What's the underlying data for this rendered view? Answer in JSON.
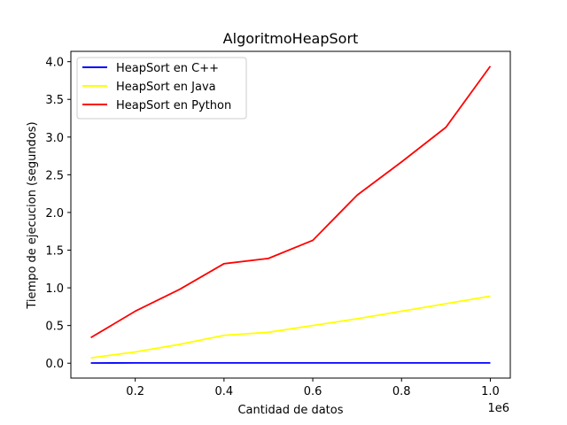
{
  "chart_data": {
    "type": "line",
    "title": "AlgoritmoHeapSort",
    "xlabel": "Cantidad de datos",
    "ylabel": "Tiempo de ejecucion (segundos)",
    "x_offset_text": "1e6",
    "xlim": [
      55000,
      1045000
    ],
    "ylim": [
      -0.197,
      4.137
    ],
    "x_ticks": [
      0.2,
      0.4,
      0.6,
      0.8,
      1.0
    ],
    "y_ticks": [
      0.0,
      0.5,
      1.0,
      1.5,
      2.0,
      2.5,
      3.0,
      3.5,
      4.0
    ],
    "x_tick_labels": [
      "0.2",
      "0.4",
      "0.6",
      "0.8",
      "1.0"
    ],
    "y_tick_labels": [
      "0.0",
      "0.5",
      "1.0",
      "1.5",
      "2.0",
      "2.5",
      "3.0",
      "3.5",
      "4.0"
    ],
    "legend_position": "top-left",
    "grid": false,
    "x": [
      100000,
      200000,
      300000,
      400000,
      500000,
      600000,
      700000,
      800000,
      900000,
      1000000
    ],
    "series": [
      {
        "name": "HeapSort en C++",
        "color": "#0000ff",
        "values": [
          0.003,
          0.004,
          0.004,
          0.004,
          0.004,
          0.004,
          0.004,
          0.004,
          0.004,
          0.004
        ]
      },
      {
        "name": "HeapSort en Java",
        "color": "#ffff00",
        "values": [
          0.07,
          0.15,
          0.25,
          0.37,
          0.41,
          0.5,
          0.59,
          0.69,
          0.79,
          0.89
        ]
      },
      {
        "name": "HeapSort en Python",
        "color": "#ff0000",
        "values": [
          0.34,
          0.69,
          0.98,
          1.32,
          1.39,
          1.63,
          2.23,
          2.67,
          3.13,
          3.94
        ]
      }
    ]
  }
}
